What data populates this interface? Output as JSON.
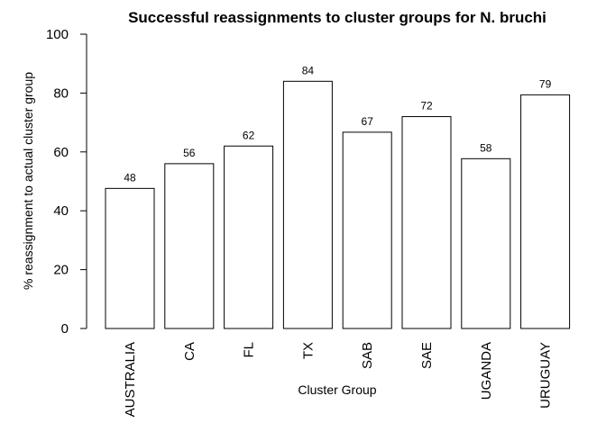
{
  "chart_data": {
    "type": "bar",
    "title": "Successful reassignments to cluster groups for N. bruchi",
    "xlabel": "Cluster Group",
    "ylabel": "% reassignment to actual cluster group",
    "categories": [
      "AUSTRALIA",
      "CA",
      "FL",
      "TX",
      "SAB",
      "SAE",
      "UGANDA",
      "URUGUAY"
    ],
    "values": [
      47.6,
      56,
      62,
      84,
      66.7,
      72,
      57.7,
      79.4
    ],
    "data_labels": [
      "48",
      "56",
      "62",
      "84",
      "67",
      "72",
      "58",
      "79"
    ],
    "ylim": [
      0,
      100
    ],
    "yticks": [
      0,
      20,
      40,
      60,
      80,
      100
    ],
    "grid": false,
    "legend": "none",
    "bar_fill": "#ffffff",
    "bar_stroke": "#000000"
  }
}
